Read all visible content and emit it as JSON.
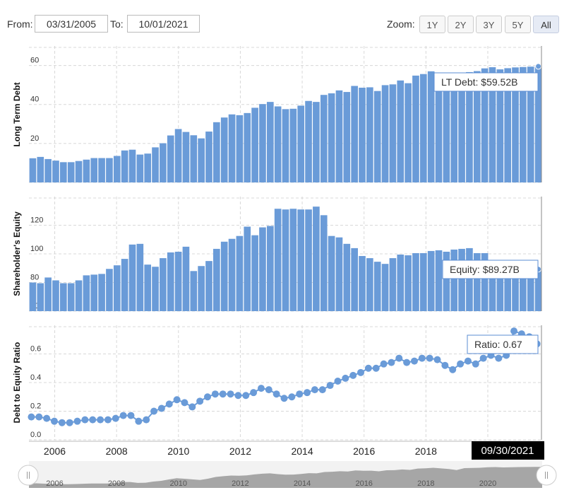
{
  "toolbar": {
    "from_label": "From:",
    "from_value": "03/31/2005",
    "to_label": "To:",
    "to_value": "10/01/2021",
    "zoom_label": "Zoom:",
    "zoom_options": [
      "1Y",
      "2Y",
      "3Y",
      "5Y",
      "All"
    ],
    "zoom_selected": "All"
  },
  "colors": {
    "series": "#6a9bd8",
    "grid": "#d8d8d8",
    "flag_bg": "#000000",
    "navigator_fill": "#999999"
  },
  "x_axis_labels": [
    "2006",
    "2008",
    "2010",
    "2012",
    "2014",
    "2016",
    "2018",
    "2020"
  ],
  "navigator_labels": [
    "2006",
    "2008",
    "2010",
    "2012",
    "2014",
    "2016",
    "2018",
    "2020"
  ],
  "current_date_flag": "09/30/2021",
  "chart_data": [
    {
      "type": "bar",
      "ylabel": "Long Term Debt",
      "ylim": [
        0,
        70
      ],
      "yticks": [
        "0",
        "20",
        "40",
        "60"
      ],
      "tooltip": "LT Debt: $59.52B",
      "x": [
        "2005-03",
        "2005-06",
        "2005-09",
        "2005-12",
        "2006-03",
        "2006-06",
        "2006-09",
        "2006-12",
        "2007-03",
        "2007-06",
        "2007-09",
        "2007-12",
        "2008-03",
        "2008-06",
        "2008-09",
        "2008-12",
        "2009-03",
        "2009-06",
        "2009-09",
        "2009-12",
        "2010-03",
        "2010-06",
        "2010-09",
        "2010-12",
        "2011-03",
        "2011-06",
        "2011-09",
        "2011-12",
        "2012-03",
        "2012-06",
        "2012-09",
        "2012-12",
        "2013-03",
        "2013-06",
        "2013-09",
        "2013-12",
        "2014-03",
        "2014-06",
        "2014-09",
        "2014-12",
        "2015-03",
        "2015-06",
        "2015-09",
        "2015-12",
        "2016-03",
        "2016-06",
        "2016-09",
        "2016-12",
        "2017-03",
        "2017-06",
        "2017-09",
        "2017-12",
        "2018-03",
        "2018-06",
        "2018-09",
        "2018-12",
        "2019-03",
        "2019-06",
        "2019-09",
        "2019-12",
        "2020-03",
        "2020-06",
        "2020-09",
        "2020-12",
        "2021-03",
        "2021-06",
        "2021-09"
      ],
      "values": [
        12.4,
        13.1,
        12.0,
        11.2,
        10.4,
        10.4,
        11.0,
        11.7,
        12.5,
        12.5,
        12.5,
        13.6,
        16.4,
        16.8,
        14.3,
        14.8,
        18.0,
        20.1,
        24.1,
        27.4,
        25.9,
        24.2,
        22.6,
        26.1,
        30.9,
        33.3,
        34.9,
        34.5,
        35.6,
        38.3,
        40.2,
        41.3,
        39.0,
        37.6,
        37.8,
        39.4,
        41.8,
        41.3,
        44.9,
        45.7,
        47.2,
        46.4,
        49.5,
        48.6,
        48.8,
        46.9,
        49.9,
        50.3,
        52.3,
        50.9,
        54.8,
        55.6,
        57.0,
        55.2,
        53.6,
        50.4,
        56.0,
        56.6,
        57.1,
        58.5,
        59.1,
        58.0,
        58.6,
        59.0,
        59.2,
        59.4,
        59.52
      ]
    },
    {
      "type": "bar",
      "ylabel": "Shareholder's Equity",
      "ylim": [
        60,
        140
      ],
      "yticks": [
        "60",
        "80",
        "100",
        "120"
      ],
      "tooltip": "Equity: $89.27B",
      "x": [
        "2005-03",
        "2005-06",
        "2005-09",
        "2005-12",
        "2006-03",
        "2006-06",
        "2006-09",
        "2006-12",
        "2007-03",
        "2007-06",
        "2007-09",
        "2007-12",
        "2008-03",
        "2008-06",
        "2008-09",
        "2008-12",
        "2009-03",
        "2009-06",
        "2009-09",
        "2009-12",
        "2010-03",
        "2010-06",
        "2010-09",
        "2010-12",
        "2011-03",
        "2011-06",
        "2011-09",
        "2011-12",
        "2012-03",
        "2012-06",
        "2012-09",
        "2012-12",
        "2013-03",
        "2013-06",
        "2013-09",
        "2013-12",
        "2014-03",
        "2014-06",
        "2014-09",
        "2014-12",
        "2015-03",
        "2015-06",
        "2015-09",
        "2015-12",
        "2016-03",
        "2016-06",
        "2016-09",
        "2016-12",
        "2017-03",
        "2017-06",
        "2017-09",
        "2017-12",
        "2018-03",
        "2018-06",
        "2018-09",
        "2018-12",
        "2019-03",
        "2019-06",
        "2019-09",
        "2019-12",
        "2020-03",
        "2020-06",
        "2020-09",
        "2020-12",
        "2021-03",
        "2021-06",
        "2021-09"
      ],
      "values": [
        80.0,
        79.5,
        83.5,
        81.5,
        79.5,
        79.5,
        81.5,
        85.0,
        85.5,
        86.0,
        89.5,
        92.0,
        96.5,
        106.5,
        107.0,
        92.5,
        91.0,
        97.0,
        101.0,
        101.5,
        105.0,
        88.0,
        91.5,
        95.0,
        103.5,
        108.5,
        110.5,
        112.5,
        119.0,
        113.0,
        118.5,
        119.5,
        131.5,
        131.0,
        131.5,
        131.0,
        131.0,
        133.0,
        127.0,
        112.5,
        111.5,
        107.0,
        104.0,
        98.5,
        97.0,
        94.5,
        93.0,
        97.0,
        99.5,
        99.0,
        100.5,
        100.5,
        102.0,
        102.5,
        101.5,
        103.0,
        103.5,
        104.0,
        100.5,
        100.5,
        91.0,
        90.5,
        89.5,
        89.0,
        89.5,
        89.5,
        89.27
      ]
    },
    {
      "type": "line",
      "ylabel": "Debt to Equity Ratio",
      "ylim": [
        0,
        0.8
      ],
      "yticks": [
        "0.0",
        "0.2",
        "0.4",
        "0.6"
      ],
      "tooltip": "Ratio: 0.67",
      "x": [
        "2005-03",
        "2005-06",
        "2005-09",
        "2005-12",
        "2006-03",
        "2006-06",
        "2006-09",
        "2006-12",
        "2007-03",
        "2007-06",
        "2007-09",
        "2007-12",
        "2008-03",
        "2008-06",
        "2008-09",
        "2008-12",
        "2009-03",
        "2009-06",
        "2009-09",
        "2009-12",
        "2010-03",
        "2010-06",
        "2010-09",
        "2010-12",
        "2011-03",
        "2011-06",
        "2011-09",
        "2011-12",
        "2012-03",
        "2012-06",
        "2012-09",
        "2012-12",
        "2013-03",
        "2013-06",
        "2013-09",
        "2013-12",
        "2014-03",
        "2014-06",
        "2014-09",
        "2014-12",
        "2015-03",
        "2015-06",
        "2015-09",
        "2015-12",
        "2016-03",
        "2016-06",
        "2016-09",
        "2016-12",
        "2017-03",
        "2017-06",
        "2017-09",
        "2017-12",
        "2018-03",
        "2018-06",
        "2018-09",
        "2018-12",
        "2019-03",
        "2019-06",
        "2019-09",
        "2019-12",
        "2020-03",
        "2020-06",
        "2020-09",
        "2020-12",
        "2021-03",
        "2021-06",
        "2021-09"
      ],
      "values": [
        0.16,
        0.16,
        0.15,
        0.13,
        0.12,
        0.12,
        0.13,
        0.14,
        0.14,
        0.14,
        0.14,
        0.15,
        0.17,
        0.17,
        0.13,
        0.14,
        0.2,
        0.22,
        0.25,
        0.28,
        0.26,
        0.23,
        0.27,
        0.3,
        0.32,
        0.32,
        0.32,
        0.31,
        0.31,
        0.33,
        0.36,
        0.35,
        0.32,
        0.29,
        0.3,
        0.32,
        0.33,
        0.35,
        0.35,
        0.38,
        0.41,
        0.43,
        0.45,
        0.47,
        0.5,
        0.5,
        0.53,
        0.54,
        0.57,
        0.54,
        0.55,
        0.57,
        0.57,
        0.56,
        0.52,
        0.49,
        0.53,
        0.55,
        0.53,
        0.57,
        0.59,
        0.57,
        0.59,
        0.76,
        0.74,
        0.72,
        0.67
      ]
    }
  ]
}
